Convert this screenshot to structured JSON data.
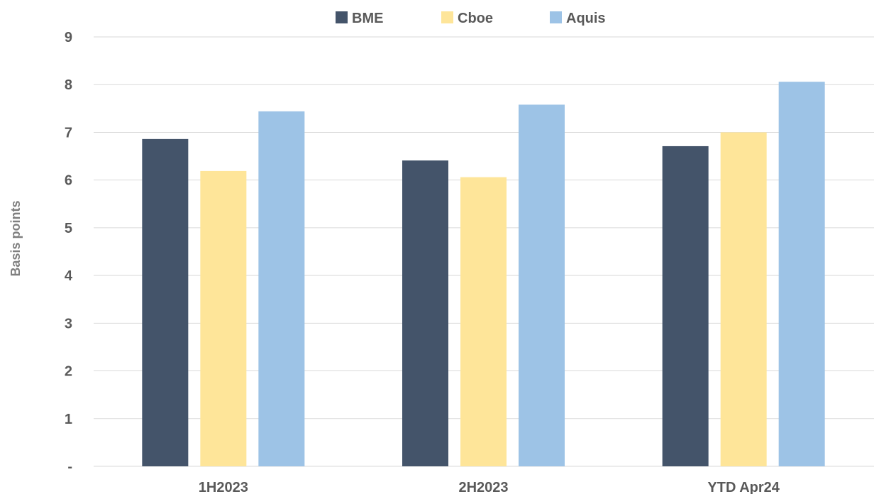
{
  "chart_data": {
    "type": "bar",
    "title": "",
    "xlabel": "",
    "ylabel": "Basis points",
    "categories": [
      "1H2023",
      "2H2023",
      "YTD Apr24"
    ],
    "series": [
      {
        "name": "BME",
        "color": "#44546a",
        "values": [
          6.86,
          6.41,
          6.71
        ]
      },
      {
        "name": "Cboe",
        "color": "#fee599",
        "values": [
          6.19,
          6.06,
          7.0
        ]
      },
      {
        "name": "Aquis",
        "color": "#9dc3e6",
        "values": [
          7.44,
          7.58,
          8.06
        ]
      }
    ],
    "ylim": [
      0,
      9
    ],
    "yticks": [
      0,
      1,
      2,
      3,
      4,
      5,
      6,
      7,
      8,
      9
    ],
    "ytick_labels": [
      "-",
      "1",
      "2",
      "3",
      "4",
      "5",
      "6",
      "7",
      "8",
      "9"
    ],
    "grid": true,
    "legend_position": "top-center"
  }
}
